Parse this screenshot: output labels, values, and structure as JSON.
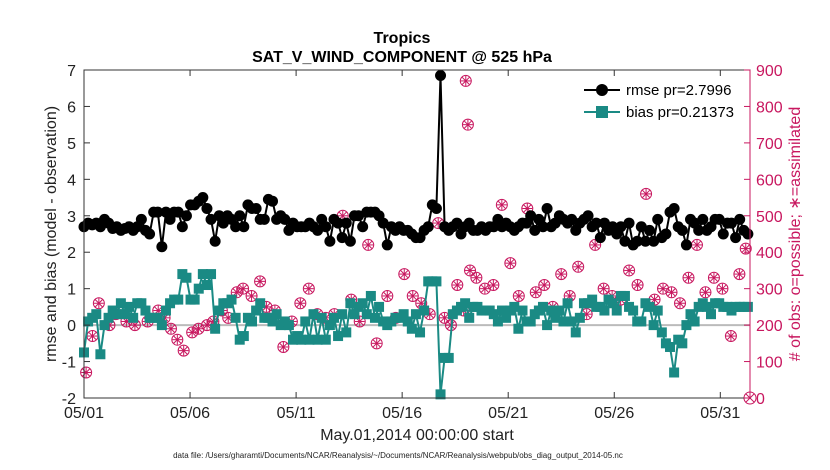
{
  "chart_data": {
    "type": "line",
    "title": "Tropics",
    "subtitle": "SAT_V_WIND_COMPONENT @ 525 hPa",
    "xlabel": "May.01,2014 00:00:00 start",
    "ylabel": "rmse and bias (model - observation)",
    "ylabel_right": "# of obs: o=possible; ∗=assimilated",
    "footnote": "data file: /Users/gharamti/Documents/NCAR/Reanalysis/~/Documents/NCAR/Reanalysis/webpub/obs_diag_output_2014-05.nc",
    "xlim": [
      0,
      31.4
    ],
    "ylim": [
      -2,
      7
    ],
    "ylim_right": [
      0,
      900
    ],
    "x_ticks": [
      0,
      5,
      10,
      15,
      20,
      25,
      30
    ],
    "x_tick_labels": [
      "05/01",
      "05/06",
      "05/11",
      "05/16",
      "05/21",
      "05/26",
      "05/31"
    ],
    "y_ticks": [
      -2,
      -1,
      0,
      1,
      2,
      3,
      4,
      5,
      6,
      7
    ],
    "y_tick_labels": [
      "-2",
      "-1",
      "0",
      "1",
      "2",
      "3",
      "4",
      "5",
      "6",
      "7"
    ],
    "y_ticks_right": [
      0,
      100,
      200,
      300,
      400,
      500,
      600,
      700,
      800,
      900
    ],
    "y_tick_labels_right": [
      "0",
      "100",
      "200",
      "300",
      "400",
      "500",
      "600",
      "700",
      "800",
      "900"
    ],
    "legend_position": "top-right",
    "colors": {
      "rmse": "#000000",
      "bias": "#1a8a84",
      "obs": "#c8175f",
      "zero_line": "#bbbbbb"
    },
    "series": [
      {
        "name": "rmse",
        "legend_label": "rmse pr=2.7996",
        "marker": "circle",
        "values": [
          2.7,
          2.8,
          2.75,
          2.8,
          2.7,
          2.9,
          2.8,
          2.65,
          2.7,
          2.6,
          2.65,
          2.7,
          2.6,
          2.7,
          2.9,
          2.6,
          2.5,
          3.1,
          3.1,
          2.15,
          3.1,
          2.9,
          3.1,
          3.1,
          2.7,
          3.0,
          3.3,
          3.3,
          3.4,
          3.5,
          3.2,
          2.9,
          2.3,
          3.0,
          2.8,
          3.0,
          2.9,
          2.7,
          3.0,
          2.7,
          3.3,
          3.2,
          3.2,
          2.9,
          2.9,
          3.45,
          3.4,
          2.9,
          3.0,
          2.9,
          2.6,
          2.8,
          2.7,
          2.7,
          2.7,
          2.8,
          2.7,
          2.6,
          2.9,
          2.7,
          2.3,
          2.9,
          2.8,
          2.4,
          2.8,
          2.3,
          3.0,
          3.0,
          2.7,
          3.1,
          3.1,
          3.1,
          3.0,
          2.8,
          2.2,
          2.7,
          2.6,
          2.7,
          2.6,
          2.6,
          2.5,
          2.4,
          2.4,
          2.6,
          2.7,
          3.3,
          3.2,
          6.85,
          2.7,
          2.6,
          2.7,
          2.8,
          2.5,
          2.7,
          2.8,
          2.6,
          2.6,
          2.7,
          2.6,
          2.7,
          2.7,
          2.9,
          2.7,
          2.8,
          2.7,
          2.6,
          2.7,
          2.8,
          2.8,
          3.0,
          2.6,
          2.9,
          2.7,
          3.2,
          2.7,
          2.8,
          3.0,
          2.9,
          2.8,
          2.9,
          2.6,
          2.8,
          2.9,
          3.0,
          2.7,
          2.8,
          2.4,
          2.8,
          2.6,
          2.7,
          2.5,
          2.7,
          2.3,
          2.8,
          2.2,
          2.3,
          2.7,
          2.3,
          2.6,
          2.3,
          2.9,
          2.4,
          2.5,
          3.1,
          3.2,
          2.7,
          2.6,
          2.2,
          2.9,
          2.8,
          2.6,
          2.9,
          2.6,
          2.7,
          2.9,
          2.9,
          2.5,
          2.8,
          2.8,
          2.4,
          2.9,
          2.6,
          2.5
        ]
      },
      {
        "name": "bias",
        "legend_label": "bias pr=0.21373",
        "marker": "square",
        "values": [
          -0.75,
          0.1,
          0.2,
          0.3,
          -0.8,
          0.0,
          0.2,
          0.4,
          0.3,
          0.6,
          0.3,
          0.5,
          0.2,
          0.6,
          0.6,
          0.4,
          0.2,
          0.2,
          0.2,
          0.0,
          0.4,
          0.6,
          0.7,
          0.7,
          1.4,
          1.3,
          0.7,
          0.7,
          1.0,
          1.4,
          1.1,
          1.4,
          -0.1,
          0.4,
          0.6,
          0.6,
          0.7,
          0.2,
          -0.4,
          -0.3,
          0.2,
          0.1,
          0.4,
          0.6,
          0.2,
          0.2,
          0.1,
          0.3,
          0.0,
          0.1,
          0.0,
          -0.4,
          -0.3,
          -0.4,
          0.1,
          -0.4,
          0.3,
          -0.4,
          0.2,
          -0.4,
          0.0,
          0.2,
          -0.3,
          0.3,
          -0.2,
          0.6,
          0.3,
          0.5,
          0.6,
          0.3,
          0.8,
          0.2,
          0.5,
          0.1,
          0.0,
          0.1,
          0.2,
          0.2,
          0.3,
          0.1,
          -0.1,
          0.3,
          -0.2,
          0.4,
          1.2,
          1.2,
          1.2,
          -1.9,
          -0.9,
          -0.9,
          0.3,
          0.4,
          0.5,
          0.6,
          0.2,
          0.5,
          0.5,
          0.4,
          0.4,
          0.4,
          0.3,
          0.1,
          0.4,
          0.2,
          0.4,
          0.5,
          -0.1,
          0.4,
          0.1,
          0.1,
          0.3,
          0.4,
          0.5,
          0.0,
          0.4,
          0.2,
          0.4,
          0.1,
          0.6,
          0.1,
          -0.2,
          0.2,
          0.6,
          0.6,
          0.7,
          0.5,
          0.5,
          0.4,
          0.7,
          0.6,
          0.4,
          0.8,
          0.8,
          0.5,
          0.4,
          0.1,
          0.1,
          0.6,
          0.5,
          0.0,
          0.4,
          -0.2,
          -0.5,
          -0.6,
          -1.3,
          -0.4,
          -0.5,
          0.0,
          0.3,
          0.1,
          0.5,
          0.6,
          0.5,
          0.3,
          0.6,
          0.6,
          0.5,
          0.5,
          0.4,
          0.5,
          0.5,
          0.5,
          0.5
        ]
      },
      {
        "name": "obs_assimilated",
        "axis": "right",
        "marker": "asterisk-circle",
        "x": [
          0.1,
          0.4,
          0.7,
          1.2,
          1.5,
          2.0,
          2.4,
          3.0,
          3.5,
          3.8,
          4.1,
          4.4,
          4.7,
          5.1,
          5.4,
          5.8,
          6.1,
          6.5,
          6.8,
          7.2,
          7.5,
          7.9,
          8.3,
          8.6,
          9.0,
          9.4,
          9.8,
          10.2,
          10.6,
          11.0,
          11.4,
          11.8,
          12.2,
          12.6,
          13.0,
          13.4,
          13.8,
          14.3,
          14.7,
          15.1,
          15.5,
          15.9,
          16.3,
          16.7,
          17.0,
          17.3,
          17.6,
          17.9,
          18.2,
          18.5,
          18.9,
          19.3,
          19.7,
          20.1,
          20.5,
          20.9,
          21.3,
          21.7,
          22.1,
          22.5,
          22.9,
          23.3,
          23.7,
          24.1,
          24.5,
          24.9,
          25.3,
          25.7,
          26.1,
          26.5,
          26.9,
          27.3,
          27.7,
          28.1,
          28.5,
          28.9,
          29.3,
          29.7,
          30.1,
          30.5,
          30.9,
          31.2
        ],
        "values": [
          70,
          170,
          260,
          200,
          230,
          210,
          200,
          210,
          240,
          220,
          190,
          160,
          130,
          180,
          190,
          200,
          210,
          240,
          220,
          290,
          300,
          280,
          320,
          250,
          240,
          140,
          210,
          260,
          300,
          230,
          220,
          230,
          500,
          270,
          210,
          420,
          150,
          280,
          220,
          340,
          280,
          260,
          230,
          480,
          220,
          200,
          310,
          240,
          350,
          330,
          300,
          310,
          530,
          370,
          280,
          520,
          290,
          310,
          250,
          340,
          280,
          360,
          230,
          420,
          300,
          280,
          270,
          350,
          310,
          560,
          270,
          300,
          290,
          260,
          330,
          420,
          290,
          330,
          300,
          170,
          340,
          410
        ]
      },
      {
        "name": "obs_possible",
        "axis": "right",
        "marker": "open-circle",
        "x": [
          18.0,
          18.1
        ],
        "values": [
          870,
          750
        ]
      }
    ]
  }
}
